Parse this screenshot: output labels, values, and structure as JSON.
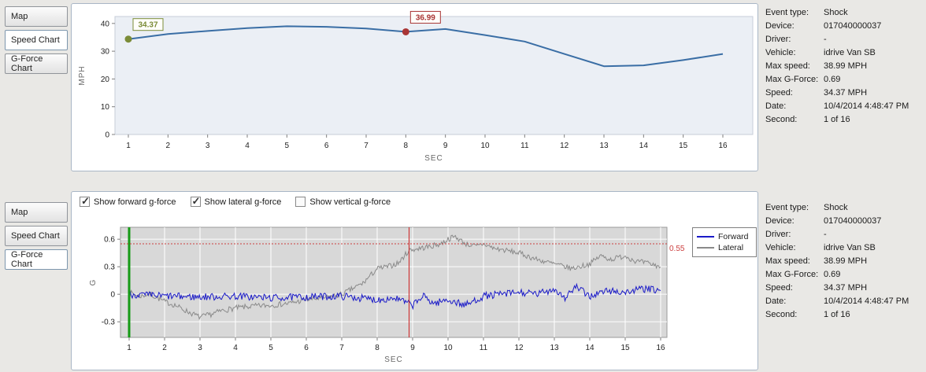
{
  "speed_panel": {
    "tabs": [
      {
        "label": "Map",
        "active": false
      },
      {
        "label": "Speed Chart",
        "active": true
      },
      {
        "label": "G-Force Chart",
        "active": false
      }
    ]
  },
  "gforce_panel": {
    "tabs": [
      {
        "label": "Map",
        "active": false
      },
      {
        "label": "Speed Chart",
        "active": false
      },
      {
        "label": "G-Force Chart",
        "active": true
      }
    ],
    "checkboxes": [
      {
        "label": "Show forward g-force",
        "checked": true
      },
      {
        "label": "Show lateral g-force",
        "checked": true
      },
      {
        "label": "Show vertical g-force",
        "checked": false
      }
    ]
  },
  "info": {
    "rows": [
      {
        "label": "Event type:",
        "value": "Shock"
      },
      {
        "label": "Device:",
        "value": "017040000037"
      },
      {
        "label": "Driver:",
        "value": "-"
      },
      {
        "label": "Vehicle:",
        "value": "idrive Van SB"
      },
      {
        "label": "Max speed:",
        "value": "38.99 MPH"
      },
      {
        "label": "Max G-Force:",
        "value": "0.69"
      },
      {
        "label": "Speed:",
        "value": "34.37 MPH"
      },
      {
        "label": "Date:",
        "value": "10/4/2014 4:48:47 PM"
      },
      {
        "label": "Second:",
        "value": "1 of 16"
      }
    ]
  },
  "chart_data": [
    {
      "type": "line",
      "name": "speed-chart",
      "xlabel": "SEC",
      "ylabel": "MPH",
      "x": [
        1,
        2,
        3,
        4,
        5,
        6,
        7,
        8,
        9,
        10,
        11,
        12,
        13,
        14,
        15,
        16
      ],
      "values": [
        34.37,
        36.2,
        37.3,
        38.3,
        38.99,
        38.8,
        38.2,
        36.99,
        38.0,
        35.8,
        33.5,
        29.0,
        24.6,
        24.9,
        26.8,
        29.0
      ],
      "xticks": [
        1,
        2,
        3,
        4,
        5,
        6,
        7,
        8,
        9,
        10,
        11,
        12,
        13,
        14,
        15,
        16
      ],
      "yticks": [
        0,
        10,
        20,
        30,
        40
      ],
      "ylim": [
        0,
        42.5
      ],
      "line_color": "#3a6ea5",
      "annotations": [
        {
          "x": 1,
          "y": 34.37,
          "label": "34.37",
          "color": "#7b8c38"
        },
        {
          "x": 8,
          "y": 36.99,
          "label": "36.99",
          "color": "#a93535"
        }
      ]
    },
    {
      "type": "line",
      "name": "gforce-chart",
      "xlabel": "SEC",
      "ylabel": "G",
      "xticks": [
        1,
        2,
        3,
        4,
        5,
        6,
        7,
        8,
        9,
        10,
        11,
        12,
        13,
        14,
        15,
        16
      ],
      "yticks": [
        -0.3,
        0,
        0.3,
        0.6
      ],
      "ylim": [
        -0.47,
        0.73
      ],
      "threshold": {
        "value": 0.55,
        "label": "0.55",
        "color": "#cc4040"
      },
      "vlines": [
        {
          "x": 1,
          "color": "#159a15",
          "width": 3
        },
        {
          "x": 8.9,
          "color": "#cc2222",
          "width": 1
        }
      ],
      "series": [
        {
          "name": "Forward",
          "color": "#1a1ac8",
          "noise": 0.04,
          "keypoints": [
            [
              1,
              0.0
            ],
            [
              2,
              -0.02
            ],
            [
              3,
              -0.03
            ],
            [
              4,
              -0.02
            ],
            [
              5,
              -0.04
            ],
            [
              6,
              -0.03
            ],
            [
              7,
              -0.02
            ],
            [
              8,
              -0.06
            ],
            [
              8.5,
              -0.04
            ],
            [
              9,
              -0.12
            ],
            [
              9.3,
              -0.02
            ],
            [
              9.6,
              -0.1
            ],
            [
              10,
              -0.06
            ],
            [
              10.5,
              -0.12
            ],
            [
              11,
              -0.02
            ],
            [
              11.5,
              0.0
            ],
            [
              12,
              0.02
            ],
            [
              12.5,
              0.0
            ],
            [
              13,
              0.06
            ],
            [
              13.3,
              -0.04
            ],
            [
              13.6,
              0.08
            ],
            [
              14,
              -0.02
            ],
            [
              14.5,
              0.04
            ],
            [
              15,
              0.02
            ],
            [
              15.5,
              0.06
            ],
            [
              16,
              0.04
            ]
          ]
        },
        {
          "name": "Lateral",
          "color": "#8a8a8a",
          "noise": 0.03,
          "keypoints": [
            [
              1,
              0.02
            ],
            [
              1.3,
              -0.02
            ],
            [
              1.6,
              0.0
            ],
            [
              2,
              -0.08
            ],
            [
              2.3,
              -0.12
            ],
            [
              2.6,
              -0.18
            ],
            [
              3,
              -0.25
            ],
            [
              3.3,
              -0.22
            ],
            [
              3.6,
              -0.18
            ],
            [
              4,
              -0.15
            ],
            [
              4.5,
              -0.13
            ],
            [
              5,
              -0.12
            ],
            [
              5.5,
              -0.1
            ],
            [
              6,
              -0.06
            ],
            [
              6.5,
              -0.04
            ],
            [
              7,
              0.0
            ],
            [
              7.3,
              0.06
            ],
            [
              7.6,
              0.12
            ],
            [
              8,
              0.28
            ],
            [
              8.3,
              0.3
            ],
            [
              8.6,
              0.34
            ],
            [
              8.9,
              0.48
            ],
            [
              9.2,
              0.5
            ],
            [
              9.5,
              0.52
            ],
            [
              9.8,
              0.55
            ],
            [
              10,
              0.6
            ],
            [
              10.2,
              0.63
            ],
            [
              10.5,
              0.55
            ],
            [
              10.8,
              0.52
            ],
            [
              11,
              0.55
            ],
            [
              11.3,
              0.5
            ],
            [
              11.6,
              0.48
            ],
            [
              12,
              0.45
            ],
            [
              12.5,
              0.38
            ],
            [
              13,
              0.33
            ],
            [
              13.5,
              0.28
            ],
            [
              14,
              0.33
            ],
            [
              14.3,
              0.42
            ],
            [
              14.6,
              0.38
            ],
            [
              15,
              0.42
            ],
            [
              15.3,
              0.36
            ],
            [
              15.6,
              0.34
            ],
            [
              16,
              0.3
            ]
          ]
        }
      ]
    }
  ]
}
